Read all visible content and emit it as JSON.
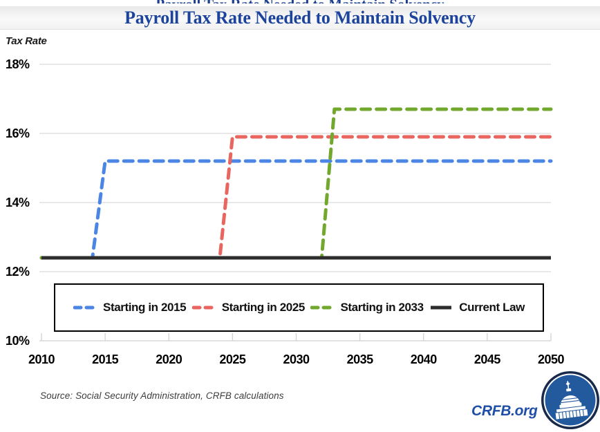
{
  "header": {
    "title": "Payroll Tax Rate Needed to Maintain Solvency"
  },
  "chart_data": {
    "type": "line",
    "title": "Payroll Tax Rate Needed to Maintain Solvency",
    "ylabel": "Tax Rate",
    "xlabel": "",
    "xlim": [
      2010,
      2050
    ],
    "ylim": [
      10,
      18
    ],
    "grid": true,
    "legend_position": "bottom-inside-box",
    "xticks": [
      {
        "value": 2010,
        "label": "2010"
      },
      {
        "value": 2015,
        "label": "2015"
      },
      {
        "value": 2020,
        "label": "2020"
      },
      {
        "value": 2025,
        "label": "2025"
      },
      {
        "value": 2030,
        "label": "2030"
      },
      {
        "value": 2035,
        "label": "2035"
      },
      {
        "value": 2040,
        "label": "2040"
      },
      {
        "value": 2045,
        "label": "2045"
      },
      {
        "value": 2050,
        "label": "2050"
      }
    ],
    "yticks": [
      {
        "value": 18,
        "label": "18%"
      },
      {
        "value": 16,
        "label": "16%"
      },
      {
        "value": 14,
        "label": "14%"
      },
      {
        "value": 12,
        "label": "12%"
      },
      {
        "value": 10,
        "label": "10%"
      }
    ],
    "series": [
      {
        "name": "Starting in 2015",
        "color": "#4c86e4",
        "style": "dashed",
        "points": [
          [
            2010,
            12.4
          ],
          [
            2014,
            12.4
          ],
          [
            2015,
            15.2
          ],
          [
            2050,
            15.2
          ]
        ]
      },
      {
        "name": "Starting in 2025",
        "color": "#e8665f",
        "style": "dashed",
        "points": [
          [
            2010,
            12.4
          ],
          [
            2024,
            12.4
          ],
          [
            2025,
            15.9
          ],
          [
            2050,
            15.9
          ]
        ]
      },
      {
        "name": "Starting in 2033",
        "color": "#72a82d",
        "style": "dashed",
        "points": [
          [
            2010,
            12.4
          ],
          [
            2032,
            12.4
          ],
          [
            2033,
            16.7
          ],
          [
            2050,
            16.7
          ]
        ]
      },
      {
        "name": "Current Law",
        "color": "#2d2d2d",
        "style": "solid",
        "points": [
          [
            2010,
            12.4
          ],
          [
            2050,
            12.4
          ]
        ]
      }
    ]
  },
  "footer": {
    "source": "Source: Social Security Administration, CRFB calculations",
    "brand": "CRFB.org"
  },
  "colors": {
    "title_blue": "#1c449c",
    "gridline": "#d9d9d9",
    "axis": "#cfcfcf",
    "logo_navy": "#18294a",
    "logo_blue": "#235a9e"
  }
}
